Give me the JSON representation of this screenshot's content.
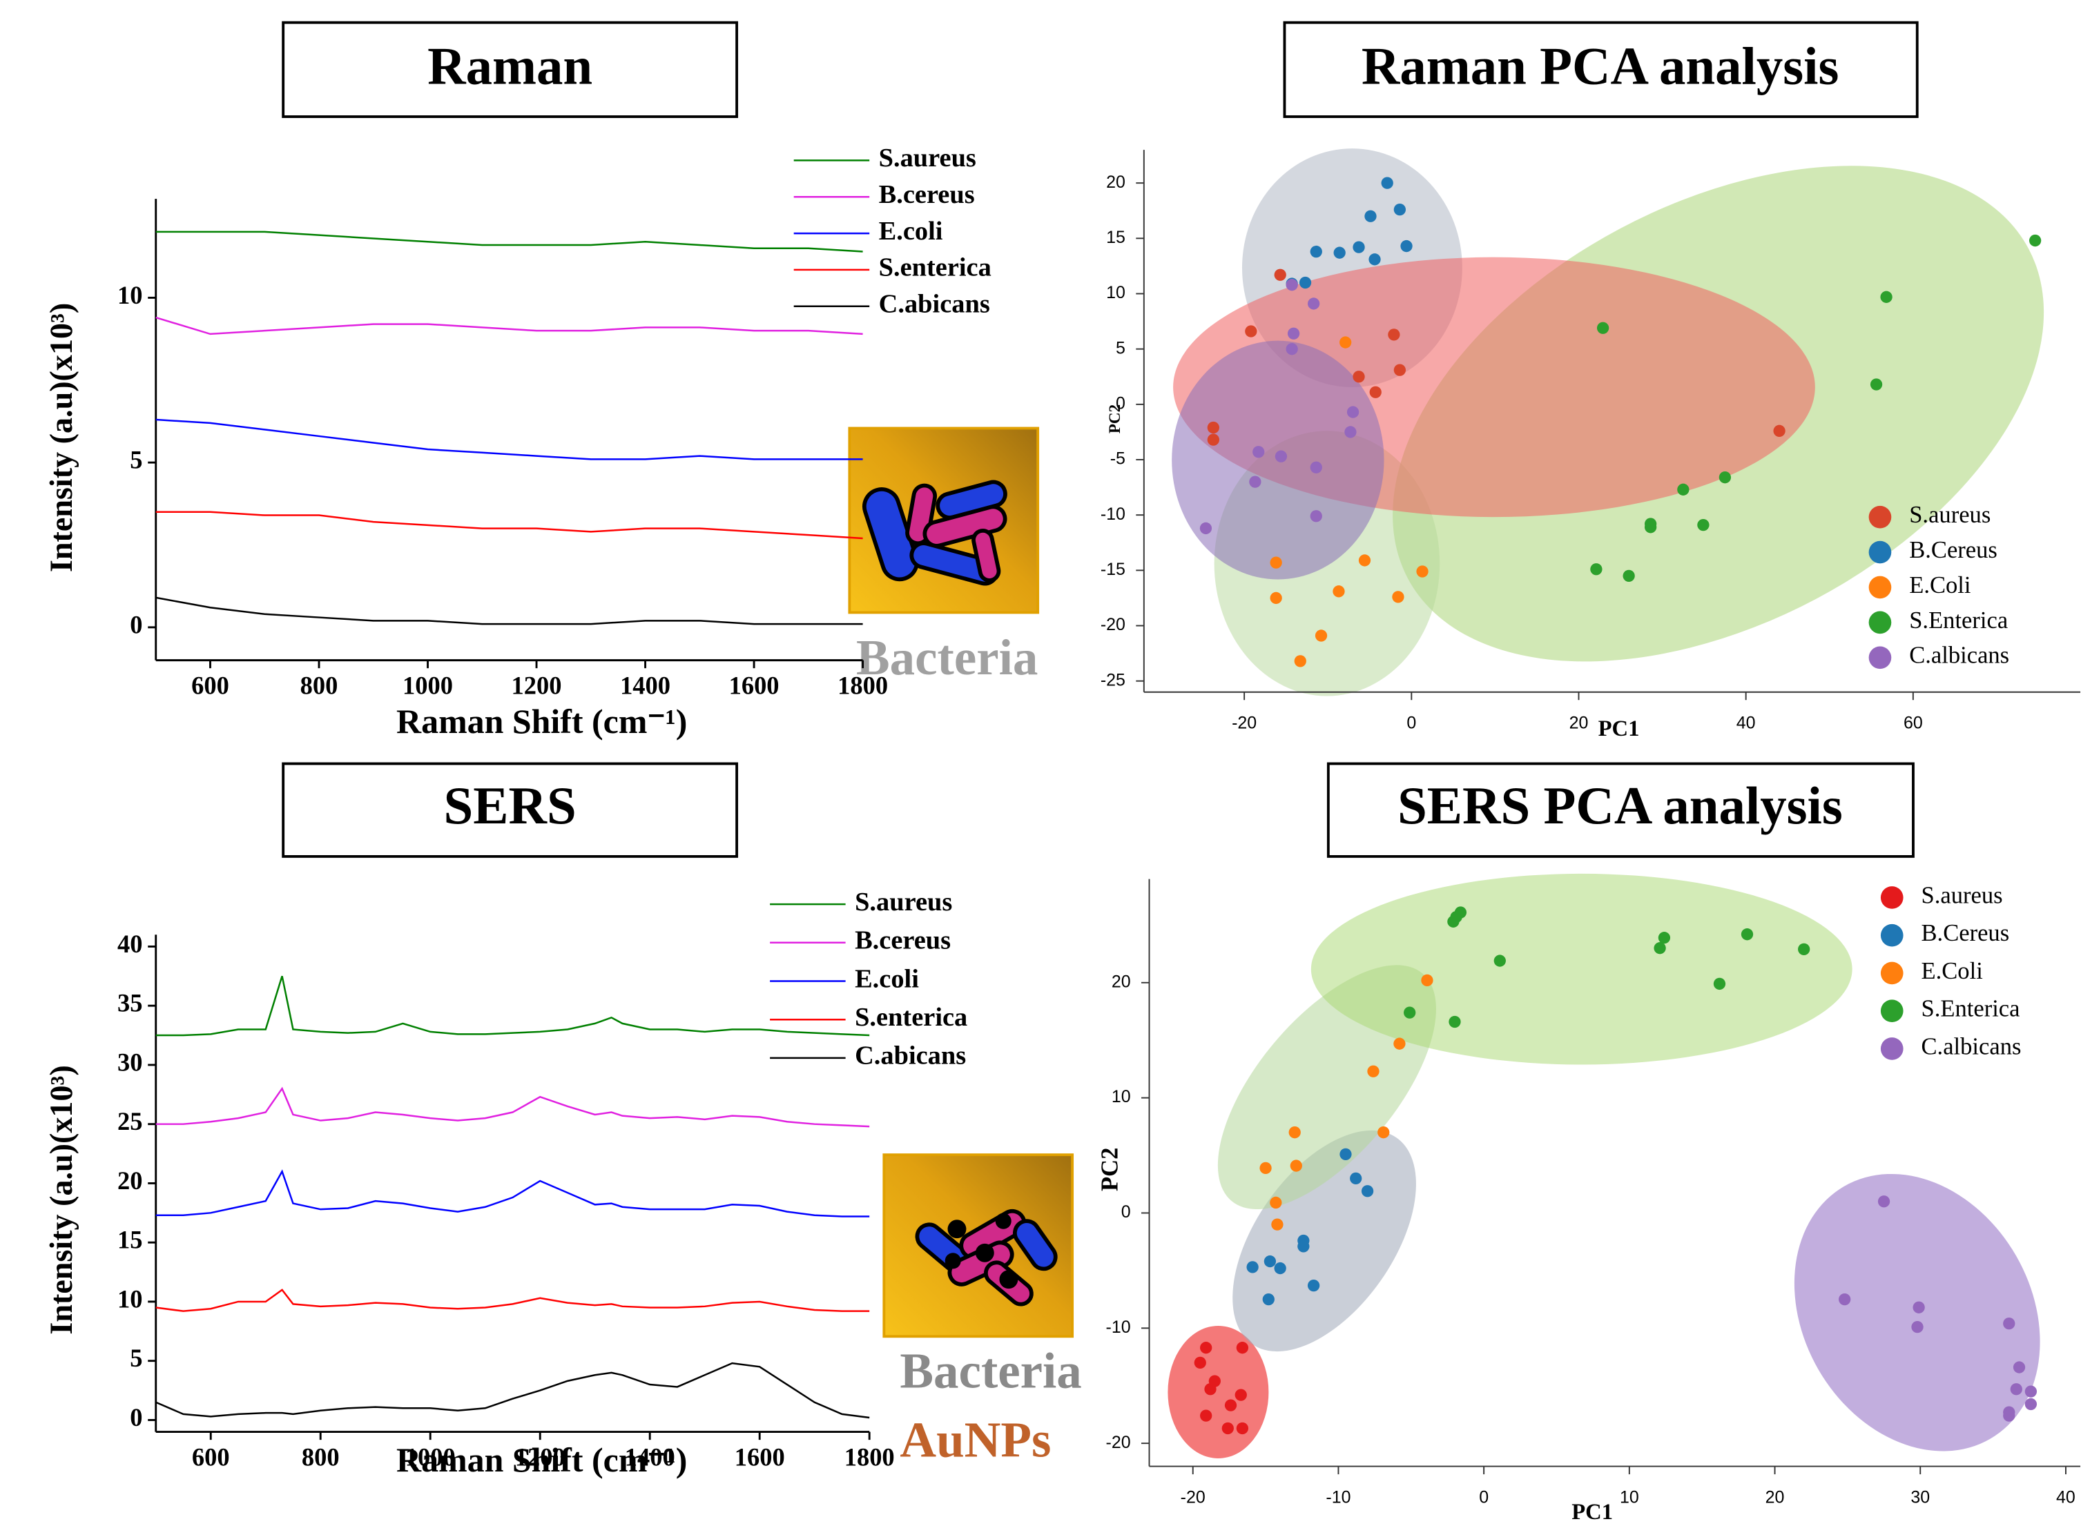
{
  "chart_data": [
    {
      "type": "line",
      "title": "Raman",
      "x_label": "Raman Shift (cm⁻¹)",
      "y_label": "Intensity (a.u)(x10³)",
      "annotations": [
        "Bacteria"
      ],
      "legend": "upper right",
      "x": [
        500,
        600,
        700,
        800,
        900,
        1000,
        1100,
        1200,
        1300,
        1400,
        1500,
        1600,
        1700,
        1800
      ],
      "xlim": [
        500,
        1800
      ],
      "ylim": [
        -1,
        13
      ],
      "xticks": [
        600,
        800,
        1000,
        1200,
        1400,
        1600,
        1800
      ],
      "yticks": [
        0,
        5,
        10
      ],
      "series": [
        {
          "name": "S.aureus",
          "color": "#008000",
          "values": [
            12.0,
            12.0,
            12.0,
            11.9,
            11.8,
            11.7,
            11.6,
            11.6,
            11.6,
            11.7,
            11.6,
            11.5,
            11.5,
            11.4
          ]
        },
        {
          "name": "B.cereus",
          "color": "#e020e0",
          "values": [
            9.4,
            8.9,
            9.0,
            9.1,
            9.2,
            9.2,
            9.1,
            9.0,
            9.0,
            9.1,
            9.1,
            9.0,
            9.0,
            8.9
          ]
        },
        {
          "name": "E.coli",
          "color": "#0000ff",
          "values": [
            6.3,
            6.2,
            6.0,
            5.8,
            5.6,
            5.4,
            5.3,
            5.2,
            5.1,
            5.1,
            5.2,
            5.1,
            5.1,
            5.1
          ]
        },
        {
          "name": "S.enterica",
          "color": "#ff0000",
          "values": [
            3.5,
            3.5,
            3.4,
            3.4,
            3.2,
            3.1,
            3.0,
            3.0,
            2.9,
            3.0,
            3.0,
            2.9,
            2.8,
            2.7
          ]
        },
        {
          "name": "C.abicans",
          "color": "#000000",
          "values": [
            0.9,
            0.6,
            0.4,
            0.3,
            0.2,
            0.2,
            0.1,
            0.1,
            0.1,
            0.2,
            0.2,
            0.1,
            0.1,
            0.1
          ]
        }
      ]
    },
    {
      "type": "scatter",
      "title": "Raman PCA analysis",
      "x_label": "PC1",
      "y_label": "PC2",
      "legend": "lower right",
      "xlim": [
        -32,
        80
      ],
      "ylim": [
        -26,
        23
      ],
      "xticks": [
        -20,
        0,
        20,
        40,
        60
      ],
      "yticks": [
        -25,
        -20,
        -15,
        -10,
        -5,
        0,
        5,
        10,
        15,
        20
      ],
      "series": [
        {
          "name": "S.aureus",
          "color": "#d9452a",
          "x": [
            -15.7,
            -19.2,
            -2.1,
            -1.4,
            -4.3,
            -23.7,
            -23.7,
            44,
            -6.3
          ],
          "y": [
            11.7,
            6.6,
            6.3,
            3.1,
            1.1,
            -2.1,
            -3.2,
            -2.4,
            2.5
          ]
        },
        {
          "name": "B.Cereus",
          "color": "#1f77b4",
          "x": [
            -2.9,
            -1.4,
            -4.9,
            -0.6,
            -6.3,
            -11.4,
            -8.6,
            -4.4,
            -12.7,
            -14.3
          ],
          "y": [
            20,
            17.6,
            17,
            14.3,
            14.2,
            13.8,
            13.7,
            13.1,
            11,
            10.9
          ]
        },
        {
          "name": "E.Coli",
          "color": "#ff7f0e",
          "x": [
            -7.9,
            -5.6,
            -8.7,
            -1.6,
            -16.2,
            -10.8,
            -13.3,
            1.3,
            -16.2
          ],
          "y": [
            5.6,
            -14.1,
            -16.9,
            -17.4,
            -17.5,
            -20.9,
            -23.2,
            -15.1,
            -14.3
          ]
        },
        {
          "name": "S.Enterica",
          "color": "#2ca02c",
          "x": [
            74.6,
            56.8,
            55.6,
            22.9,
            37.5,
            32.5,
            28.6,
            28.6,
            34.9,
            22.1,
            26
          ],
          "y": [
            14.8,
            9.7,
            1.8,
            6.9,
            -6.6,
            -7.7,
            -10.8,
            -11.1,
            -10.9,
            -14.9,
            -15.5
          ]
        },
        {
          "name": "C.albicans",
          "color": "#9467bd",
          "x": [
            -14.3,
            -11.7,
            -14.1,
            -14.3,
            -7.3,
            -18.3,
            -15.6,
            -11.4,
            -18.7,
            -11.4,
            -24.6,
            -7
          ],
          "y": [
            10.8,
            9.1,
            6.4,
            5,
            -2.5,
            -4.3,
            -4.7,
            -5.7,
            -7,
            -10.1,
            -11.2,
            -0.7
          ]
        }
      ]
    },
    {
      "type": "line",
      "title": "SERS",
      "x_label": "Raman Shift (cm⁻¹)",
      "y_label": "Intensity (a.u)(x10³)",
      "annotations": [
        "Bacteria",
        "AuNPs"
      ],
      "legend": "upper right",
      "x": [
        500,
        550,
        600,
        650,
        700,
        730,
        750,
        800,
        850,
        900,
        950,
        1000,
        1050,
        1100,
        1150,
        1200,
        1250,
        1300,
        1330,
        1350,
        1400,
        1450,
        1500,
        1550,
        1600,
        1650,
        1700,
        1750,
        1800
      ],
      "xlim": [
        500,
        1800
      ],
      "ylim": [
        -1,
        41
      ],
      "xticks": [
        600,
        800,
        1000,
        1200,
        1400,
        1600,
        1800
      ],
      "yticks": [
        0,
        5,
        10,
        15,
        20,
        25,
        30,
        35,
        40
      ],
      "series": [
        {
          "name": "S.aureus",
          "color": "#008000",
          "values": [
            32.5,
            32.5,
            32.6,
            33,
            33,
            37.5,
            33,
            32.8,
            32.7,
            32.8,
            33.5,
            32.8,
            32.6,
            32.6,
            32.7,
            32.8,
            33,
            33.5,
            34,
            33.5,
            33,
            33,
            32.8,
            33,
            33,
            32.8,
            32.7,
            32.6,
            32.5
          ]
        },
        {
          "name": "B.cereus",
          "color": "#e020e0",
          "values": [
            25,
            25,
            25.2,
            25.5,
            26,
            28,
            25.8,
            25.3,
            25.5,
            26,
            25.8,
            25.5,
            25.3,
            25.5,
            26,
            27.3,
            26.5,
            25.8,
            26,
            25.7,
            25.5,
            25.6,
            25.4,
            25.7,
            25.6,
            25.2,
            25,
            24.9,
            24.8
          ]
        },
        {
          "name": "E.coli",
          "color": "#0000ff",
          "values": [
            17.3,
            17.3,
            17.5,
            18,
            18.5,
            21,
            18.3,
            17.8,
            17.9,
            18.5,
            18.3,
            17.9,
            17.6,
            18,
            18.8,
            20.2,
            19.2,
            18.2,
            18.3,
            18,
            17.8,
            17.8,
            17.8,
            18.2,
            18.1,
            17.6,
            17.3,
            17.2,
            17.2
          ]
        },
        {
          "name": "S.enterica",
          "color": "#ff0000",
          "values": [
            9.5,
            9.2,
            9.4,
            10,
            10,
            11,
            9.8,
            9.6,
            9.7,
            9.9,
            9.8,
            9.5,
            9.4,
            9.5,
            9.8,
            10.3,
            9.9,
            9.7,
            9.8,
            9.6,
            9.5,
            9.5,
            9.6,
            9.9,
            10,
            9.6,
            9.3,
            9.2,
            9.2
          ]
        },
        {
          "name": "C.abicans",
          "color": "#000000",
          "values": [
            1.5,
            0.5,
            0.3,
            0.5,
            0.6,
            0.6,
            0.5,
            0.8,
            1,
            1.1,
            1,
            1,
            0.8,
            1,
            1.8,
            2.5,
            3.3,
            3.8,
            4,
            3.8,
            3,
            2.8,
            3.8,
            4.8,
            4.5,
            3,
            1.5,
            0.5,
            0.2
          ]
        }
      ]
    },
    {
      "type": "scatter",
      "title": "SERS PCA analysis",
      "x_label": "PC1",
      "y_label": "PC2",
      "legend": "upper right",
      "xlim": [
        -23,
        41
      ],
      "ylim": [
        -22,
        29
      ],
      "xticks": [
        -20,
        -10,
        0,
        10,
        20,
        30,
        40
      ],
      "yticks": [
        -20,
        -10,
        0,
        10,
        20
      ],
      "series": [
        {
          "name": "S.aureus",
          "color": "#e41a1c",
          "x": [
            -19.1,
            -16.6,
            -19.5,
            -18.5,
            -18.8,
            -16.7,
            -17.4,
            -19.1,
            -17.6,
            -16.6
          ],
          "y": [
            -11.7,
            -11.7,
            -13,
            -14.6,
            -15.3,
            -15.8,
            -16.7,
            -17.6,
            -18.7,
            -18.7
          ]
        },
        {
          "name": "B.Cereus",
          "color": "#1f77b4",
          "x": [
            -9.5,
            -8.8,
            -8,
            -12.4,
            -12.4,
            -15.9,
            -14.7,
            -14,
            -11.7,
            -14.8
          ],
          "y": [
            5.1,
            3,
            1.9,
            -2.4,
            -2.9,
            -4.7,
            -4.2,
            -4.8,
            -6.3,
            -7.5
          ]
        },
        {
          "name": "E.Coli",
          "color": "#ff7f0e",
          "x": [
            -3.9,
            -5.8,
            -7.6,
            -6.9,
            -13,
            -12.9,
            -15,
            -14.3,
            -14.2
          ],
          "y": [
            20.2,
            14.7,
            12.3,
            7,
            7,
            4.1,
            3.9,
            0.9,
            -1
          ]
        },
        {
          "name": "S.Enterica",
          "color": "#2ca02c",
          "x": [
            -1.6,
            -2.1,
            -1.9,
            1.1,
            12.4,
            12.1,
            18.1,
            22,
            16.2,
            -5.1,
            -2
          ],
          "y": [
            26.1,
            25.3,
            25.7,
            21.9,
            23.9,
            23,
            24.2,
            22.9,
            19.9,
            17.4,
            16.6
          ]
        },
        {
          "name": "C.albicans",
          "color": "#9467bd",
          "x": [
            27.5,
            24.8,
            29.9,
            29.8,
            36.1,
            36.8,
            36.6,
            37.6,
            37.6,
            36.1,
            36.1
          ],
          "y": [
            1,
            -7.5,
            -8.2,
            -9.9,
            -9.6,
            -13.4,
            -15.3,
            -15.5,
            -16.6,
            -17.3,
            -17.6
          ]
        }
      ]
    }
  ]
}
